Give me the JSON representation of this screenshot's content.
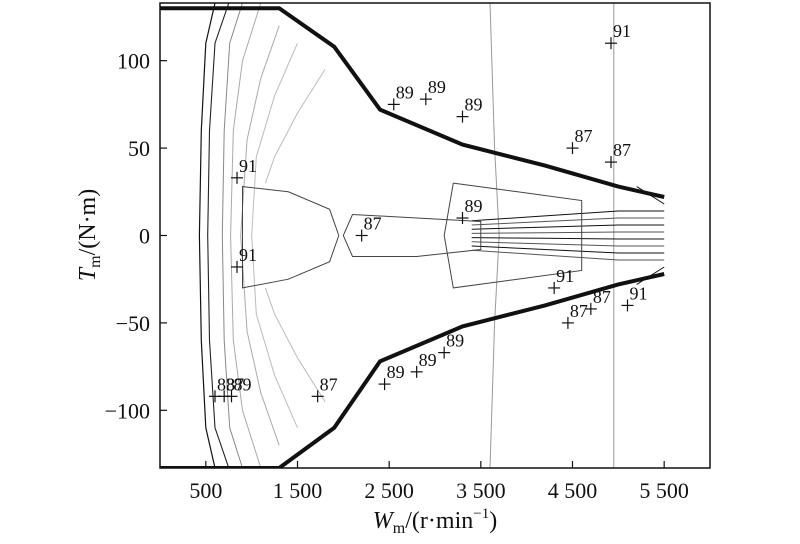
{
  "chart_data": {
    "type": "contour",
    "title": "",
    "xlabel": {
      "main": "W",
      "sub": "m",
      "rest": "/(r·min",
      "sup": "−1",
      "close": ")"
    },
    "ylabel": {
      "main": "T",
      "sub": "m",
      "rest": "/(N·m)"
    },
    "xlim": [
      0,
      6000
    ],
    "ylim": [
      -133,
      133
    ],
    "x_ticks": [
      {
        "value": 500,
        "label": "500"
      },
      {
        "value": 1500,
        "label": "1 500"
      },
      {
        "value": 2500,
        "label": "2 500"
      },
      {
        "value": 3500,
        "label": "3 500"
      },
      {
        "value": 4500,
        "label": "4 500"
      },
      {
        "value": 5500,
        "label": "5 500"
      }
    ],
    "y_ticks": [
      {
        "value": 100,
        "label": "100"
      },
      {
        "value": 50,
        "label": "50"
      },
      {
        "value": 0,
        "label": "0"
      },
      {
        "value": -50,
        "label": "−50"
      },
      {
        "value": -100,
        "label": "−100"
      }
    ],
    "max_torque_envelope": {
      "upper": [
        [
          0,
          130
        ],
        [
          1300,
          130
        ],
        [
          1900,
          108
        ],
        [
          2400,
          72
        ],
        [
          3300,
          52
        ],
        [
          4200,
          40
        ],
        [
          5000,
          28
        ],
        [
          5500,
          22
        ]
      ],
      "lower": [
        [
          0,
          -133
        ],
        [
          1300,
          -133
        ],
        [
          1900,
          -110
        ],
        [
          2400,
          -72
        ],
        [
          3300,
          -52
        ],
        [
          4200,
          -40
        ],
        [
          5000,
          -28
        ],
        [
          5500,
          -22
        ]
      ]
    },
    "contours": [
      {
        "level": 87,
        "points": [
          [
            1950,
            0
          ],
          [
            1850,
            -15
          ],
          [
            1400,
            -25
          ],
          [
            900,
            -30
          ],
          [
            900,
            28
          ],
          [
            1400,
            25
          ],
          [
            1850,
            15
          ],
          [
            1950,
            0
          ]
        ]
      },
      {
        "level": 89,
        "points": [
          [
            2100,
            12
          ],
          [
            2800,
            10
          ],
          [
            3500,
            8
          ],
          [
            3500,
            -8
          ],
          [
            2800,
            -12
          ],
          [
            2100,
            -12
          ],
          [
            2000,
            0
          ],
          [
            2100,
            12
          ]
        ]
      },
      {
        "level": 91,
        "points": [
          [
            3200,
            30
          ],
          [
            3900,
            25
          ],
          [
            4600,
            20
          ],
          [
            4600,
            -20
          ],
          [
            3900,
            -25
          ],
          [
            3200,
            -30
          ],
          [
            3100,
            0
          ],
          [
            3200,
            30
          ]
        ]
      }
    ],
    "annotations": [
      {
        "x": 4920,
        "y": 110,
        "label": "91"
      },
      {
        "x": 2550,
        "y": 75,
        "label": "89"
      },
      {
        "x": 2900,
        "y": 78,
        "label": "89"
      },
      {
        "x": 3300,
        "y": 68,
        "label": "89"
      },
      {
        "x": 4500,
        "y": 50,
        "label": "87"
      },
      {
        "x": 4920,
        "y": 42,
        "label": "87"
      },
      {
        "x": 840,
        "y": 33,
        "label": "91"
      },
      {
        "x": 2200,
        "y": 0,
        "label": "87"
      },
      {
        "x": 3300,
        "y": 10,
        "label": "89"
      },
      {
        "x": 840,
        "y": -18,
        "label": "91"
      },
      {
        "x": 4300,
        "y": -30,
        "label": "91"
      },
      {
        "x": 4450,
        "y": -50,
        "label": "87"
      },
      {
        "x": 4700,
        "y": -42,
        "label": "87"
      },
      {
        "x": 5100,
        "y": -40,
        "label": "91"
      },
      {
        "x": 3100,
        "y": -67,
        "label": "89"
      },
      {
        "x": 2800,
        "y": -78,
        "label": "89"
      },
      {
        "x": 2450,
        "y": -85,
        "label": "89"
      },
      {
        "x": 1720,
        "y": -92,
        "label": "87"
      },
      {
        "x": 600,
        "y": -92,
        "label": "83"
      },
      {
        "x": 700,
        "y": -92,
        "label": "87"
      },
      {
        "x": 780,
        "y": -92,
        "label": "89"
      }
    ]
  }
}
